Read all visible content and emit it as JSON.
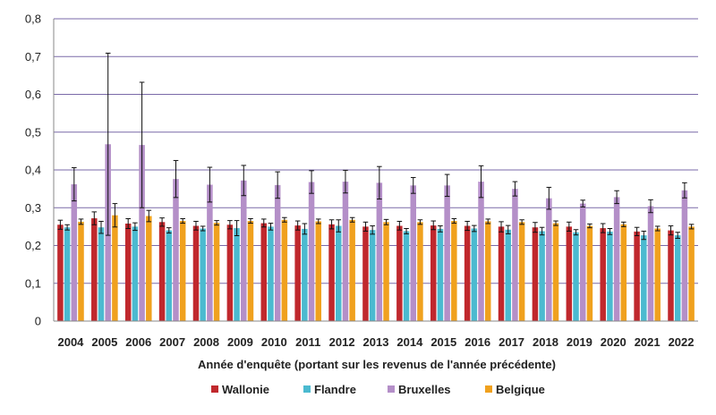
{
  "chart_data": {
    "type": "bar",
    "title": "",
    "xlabel": "Année d'enquête (portant sur les revenus de l'année précédente)",
    "ylabel": "",
    "ylim": [
      0,
      0.8
    ],
    "yticks": [
      "0",
      "0,1",
      "0,2",
      "0,3",
      "0,4",
      "0,5",
      "0,6",
      "0,7",
      "0,8"
    ],
    "grid": "horizontal",
    "legend_position": "bottom",
    "error_bars": true,
    "categories": [
      "2004",
      "2005",
      "2006",
      "2007",
      "2008",
      "2009",
      "2010",
      "2011",
      "2012",
      "2013",
      "2014",
      "2015",
      "2016",
      "2017",
      "2018",
      "2019",
      "2020",
      "2021",
      "2022"
    ],
    "series": [
      {
        "name": "Wallonie",
        "color": "#c0282d",
        "values": [
          0.255,
          0.272,
          0.258,
          0.262,
          0.252,
          0.255,
          0.259,
          0.253,
          0.256,
          0.25,
          0.252,
          0.253,
          0.252,
          0.25,
          0.248,
          0.25,
          0.246,
          0.237,
          0.24
        ],
        "err_low": [
          0.243,
          0.255,
          0.245,
          0.251,
          0.241,
          0.244,
          0.249,
          0.241,
          0.244,
          0.238,
          0.241,
          0.242,
          0.24,
          0.236,
          0.235,
          0.238,
          0.234,
          0.226,
          0.228
        ],
        "err_high": [
          0.267,
          0.289,
          0.271,
          0.273,
          0.264,
          0.266,
          0.27,
          0.265,
          0.268,
          0.262,
          0.264,
          0.265,
          0.264,
          0.263,
          0.261,
          0.262,
          0.258,
          0.248,
          0.252
        ]
      },
      {
        "name": "Flandre",
        "color": "#4bbad0",
        "values": [
          0.248,
          0.248,
          0.25,
          0.24,
          0.245,
          0.246,
          0.25,
          0.244,
          0.252,
          0.241,
          0.238,
          0.244,
          0.245,
          0.242,
          0.238,
          0.235,
          0.237,
          0.227,
          0.227
        ],
        "err_low": [
          0.241,
          0.232,
          0.24,
          0.233,
          0.239,
          0.226,
          0.241,
          0.23,
          0.236,
          0.23,
          0.231,
          0.236,
          0.237,
          0.231,
          0.228,
          0.228,
          0.229,
          0.216,
          0.219
        ],
        "err_high": [
          0.255,
          0.264,
          0.26,
          0.247,
          0.251,
          0.266,
          0.259,
          0.258,
          0.268,
          0.252,
          0.245,
          0.252,
          0.253,
          0.253,
          0.248,
          0.242,
          0.245,
          0.238,
          0.235
        ]
      },
      {
        "name": "Bruxelles",
        "color": "#b48fc8",
        "values": [
          0.362,
          0.468,
          0.466,
          0.376,
          0.361,
          0.372,
          0.36,
          0.368,
          0.369,
          0.366,
          0.359,
          0.359,
          0.369,
          0.35,
          0.325,
          0.311,
          0.328,
          0.304,
          0.346
        ],
        "err_low": [
          0.318,
          0.227,
          0.3,
          0.327,
          0.315,
          0.332,
          0.325,
          0.338,
          0.339,
          0.323,
          0.338,
          0.33,
          0.327,
          0.331,
          0.296,
          0.302,
          0.311,
          0.287,
          0.326
        ],
        "err_high": [
          0.406,
          0.709,
          0.632,
          0.425,
          0.407,
          0.412,
          0.395,
          0.398,
          0.399,
          0.409,
          0.38,
          0.388,
          0.411,
          0.369,
          0.354,
          0.32,
          0.345,
          0.321,
          0.366
        ]
      },
      {
        "name": "Belgique",
        "color": "#f0a11e",
        "values": [
          0.263,
          0.28,
          0.278,
          0.265,
          0.26,
          0.265,
          0.268,
          0.264,
          0.268,
          0.262,
          0.262,
          0.265,
          0.264,
          0.262,
          0.259,
          0.252,
          0.256,
          0.245,
          0.25
        ],
        "err_low": [
          0.256,
          0.249,
          0.263,
          0.259,
          0.254,
          0.259,
          0.262,
          0.258,
          0.262,
          0.255,
          0.256,
          0.259,
          0.258,
          0.256,
          0.253,
          0.247,
          0.25,
          0.239,
          0.244
        ],
        "err_high": [
          0.27,
          0.311,
          0.293,
          0.271,
          0.266,
          0.271,
          0.274,
          0.27,
          0.274,
          0.269,
          0.268,
          0.271,
          0.27,
          0.268,
          0.265,
          0.257,
          0.262,
          0.251,
          0.256
        ]
      }
    ]
  }
}
